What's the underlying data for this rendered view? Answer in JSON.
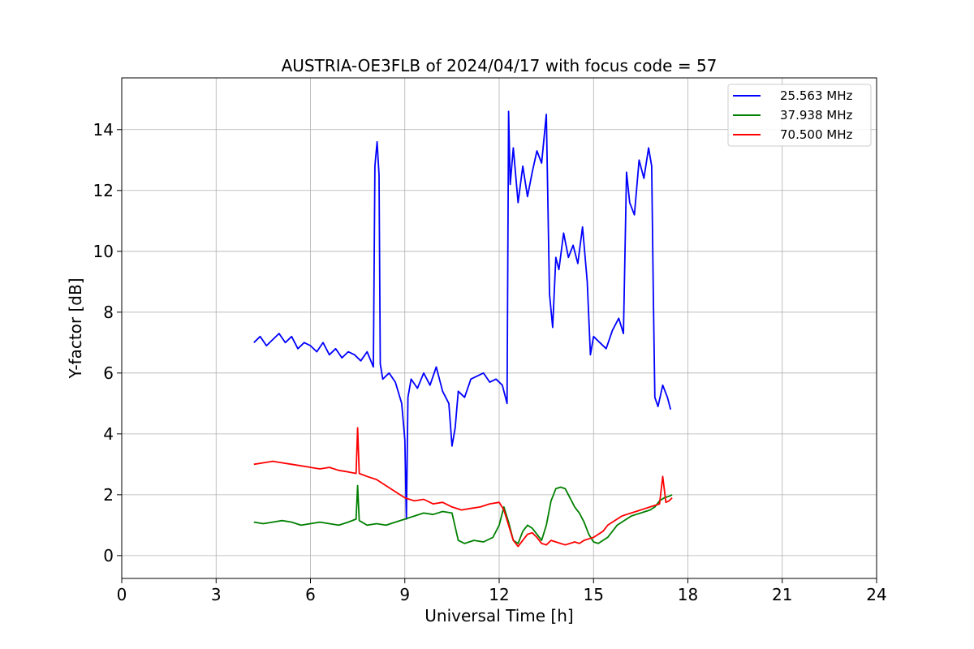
{
  "chart_data": {
    "type": "line",
    "title": "AUSTRIA-OE3FLB of 2024/04/17 with focus code = 57",
    "xlabel": "Universal Time [h]",
    "ylabel": "Y-factor [dB]",
    "xlim": [
      0,
      24
    ],
    "ylim": [
      -0.75,
      15.7
    ],
    "xticks": [
      0,
      3,
      6,
      9,
      12,
      15,
      18,
      21,
      24
    ],
    "yticks": [
      0,
      2,
      4,
      6,
      8,
      10,
      12,
      14
    ],
    "xtick_labels": [
      "0",
      "3",
      "6",
      "9",
      "12",
      "15",
      "18",
      "21",
      "24"
    ],
    "ytick_labels": [
      "0",
      "2",
      "4",
      "6",
      "8",
      "10",
      "12",
      "14"
    ],
    "grid": true,
    "legend_position": "top-right",
    "series": [
      {
        "name": "25.563 MHz",
        "color": "#0000ff",
        "x": [
          4.2,
          4.4,
          4.6,
          4.8,
          5.0,
          5.2,
          5.4,
          5.6,
          5.8,
          6.0,
          6.2,
          6.4,
          6.6,
          6.8,
          7.0,
          7.2,
          7.4,
          7.6,
          7.8,
          8.0,
          8.05,
          8.12,
          8.18,
          8.22,
          8.3,
          8.5,
          8.7,
          8.9,
          9.0,
          9.05,
          9.1,
          9.2,
          9.4,
          9.6,
          9.8,
          10.0,
          10.2,
          10.4,
          10.5,
          10.6,
          10.7,
          10.9,
          11.1,
          11.3,
          11.5,
          11.7,
          11.9,
          12.1,
          12.25,
          12.3,
          12.35,
          12.45,
          12.6,
          12.75,
          12.9,
          13.05,
          13.2,
          13.35,
          13.5,
          13.6,
          13.7,
          13.8,
          13.9,
          14.05,
          14.2,
          14.35,
          14.5,
          14.65,
          14.8,
          14.9,
          15.0,
          15.2,
          15.4,
          15.6,
          15.8,
          15.95,
          16.05,
          16.15,
          16.3,
          16.45,
          16.6,
          16.75,
          16.85,
          16.9,
          16.95,
          17.05,
          17.2,
          17.35,
          17.45
        ],
        "values": [
          7.0,
          7.2,
          6.9,
          7.1,
          7.3,
          7.0,
          7.2,
          6.8,
          7.0,
          6.9,
          6.7,
          7.0,
          6.6,
          6.8,
          6.5,
          6.7,
          6.6,
          6.4,
          6.7,
          6.2,
          12.8,
          13.6,
          12.5,
          6.3,
          5.8,
          6.0,
          5.7,
          5.0,
          3.8,
          1.2,
          5.2,
          5.8,
          5.5,
          6.0,
          5.6,
          6.2,
          5.4,
          5.0,
          3.6,
          4.2,
          5.4,
          5.2,
          5.8,
          5.9,
          6.0,
          5.7,
          5.8,
          5.6,
          5.0,
          14.6,
          12.2,
          13.4,
          11.6,
          12.8,
          11.8,
          12.6,
          13.3,
          12.9,
          14.5,
          8.6,
          7.5,
          9.8,
          9.4,
          10.6,
          9.8,
          10.2,
          9.6,
          10.8,
          9.0,
          6.6,
          7.2,
          7.0,
          6.8,
          7.4,
          7.8,
          7.3,
          12.6,
          11.6,
          11.2,
          13.0,
          12.4,
          13.4,
          12.8,
          8.6,
          5.2,
          4.9,
          5.6,
          5.2,
          4.8
        ]
      },
      {
        "name": "37.938 MHz",
        "color": "#008000",
        "x": [
          4.2,
          4.5,
          4.8,
          5.1,
          5.4,
          5.7,
          6.0,
          6.3,
          6.6,
          6.9,
          7.2,
          7.45,
          7.5,
          7.55,
          7.8,
          8.1,
          8.4,
          8.7,
          9.0,
          9.3,
          9.6,
          9.9,
          10.2,
          10.5,
          10.7,
          10.9,
          11.2,
          11.5,
          11.8,
          12.0,
          12.15,
          12.3,
          12.45,
          12.6,
          12.75,
          12.9,
          13.05,
          13.2,
          13.35,
          13.5,
          13.65,
          13.8,
          13.95,
          14.1,
          14.25,
          14.4,
          14.55,
          14.7,
          14.85,
          15.0,
          15.15,
          15.3,
          15.45,
          15.6,
          15.75,
          15.9,
          16.05,
          16.2,
          16.35,
          16.5,
          16.65,
          16.8,
          16.95,
          17.1,
          17.25,
          17.4,
          17.5
        ],
        "values": [
          1.1,
          1.05,
          1.1,
          1.15,
          1.1,
          1.0,
          1.05,
          1.1,
          1.05,
          1.0,
          1.1,
          1.2,
          2.3,
          1.15,
          1.0,
          1.05,
          1.0,
          1.1,
          1.2,
          1.3,
          1.4,
          1.35,
          1.45,
          1.4,
          0.5,
          0.4,
          0.5,
          0.45,
          0.6,
          1.0,
          1.6,
          1.1,
          0.5,
          0.4,
          0.8,
          1.0,
          0.9,
          0.7,
          0.5,
          1.0,
          1.8,
          2.2,
          2.25,
          2.2,
          1.9,
          1.6,
          1.4,
          1.1,
          0.7,
          0.45,
          0.4,
          0.5,
          0.6,
          0.8,
          1.0,
          1.1,
          1.2,
          1.3,
          1.35,
          1.4,
          1.45,
          1.5,
          1.6,
          1.8,
          1.9,
          1.95,
          2.0
        ]
      },
      {
        "name": "70.500 MHz",
        "color": "#ff0000",
        "x": [
          4.2,
          4.5,
          4.8,
          5.1,
          5.4,
          5.7,
          6.0,
          6.3,
          6.6,
          6.9,
          7.2,
          7.45,
          7.5,
          7.55,
          7.8,
          8.1,
          8.4,
          8.7,
          9.0,
          9.3,
          9.6,
          9.9,
          10.2,
          10.5,
          10.8,
          11.1,
          11.4,
          11.7,
          12.0,
          12.15,
          12.3,
          12.45,
          12.6,
          12.75,
          12.9,
          13.05,
          13.2,
          13.35,
          13.5,
          13.65,
          13.8,
          13.95,
          14.1,
          14.25,
          14.4,
          14.55,
          14.7,
          14.85,
          15.0,
          15.15,
          15.3,
          15.45,
          15.6,
          15.75,
          15.9,
          16.05,
          16.2,
          16.35,
          16.5,
          16.65,
          16.8,
          16.95,
          17.1,
          17.2,
          17.3,
          17.4,
          17.5
        ],
        "values": [
          3.0,
          3.05,
          3.1,
          3.05,
          3.0,
          2.95,
          2.9,
          2.85,
          2.9,
          2.8,
          2.75,
          2.7,
          4.2,
          2.7,
          2.6,
          2.5,
          2.3,
          2.1,
          1.9,
          1.8,
          1.85,
          1.7,
          1.75,
          1.6,
          1.5,
          1.55,
          1.6,
          1.7,
          1.75,
          1.5,
          1.0,
          0.5,
          0.3,
          0.5,
          0.7,
          0.75,
          0.6,
          0.4,
          0.35,
          0.5,
          0.45,
          0.4,
          0.35,
          0.4,
          0.45,
          0.4,
          0.5,
          0.55,
          0.6,
          0.7,
          0.8,
          1.0,
          1.1,
          1.2,
          1.3,
          1.35,
          1.4,
          1.45,
          1.5,
          1.55,
          1.6,
          1.65,
          1.7,
          2.6,
          1.75,
          1.8,
          1.9
        ]
      }
    ]
  }
}
